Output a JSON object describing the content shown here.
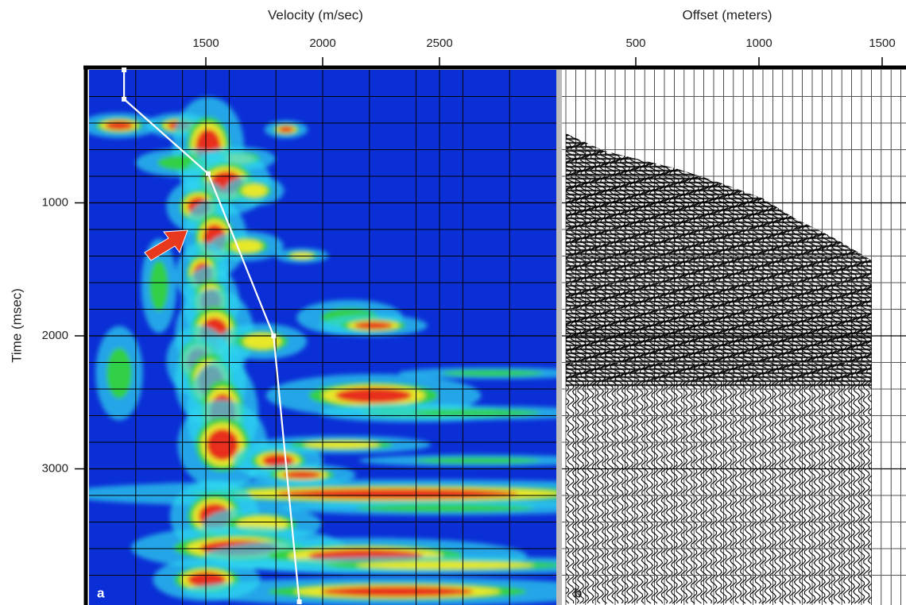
{
  "chart_data": [
    {
      "type": "semblance",
      "xlabel": "Velocity (m/sec)",
      "ylabel": "Time (msec)",
      "xlim": [
        1000,
        3000
      ],
      "ylim": [
        0,
        4000
      ],
      "xticks": [
        1500,
        2000,
        2500
      ],
      "yticks": [
        1000,
        2000,
        3000
      ],
      "xgrid": [
        1200,
        1400,
        1600,
        1800,
        2000,
        2200,
        2400,
        2600,
        2800
      ],
      "ygrid": [
        200,
        400,
        600,
        800,
        1000,
        1200,
        1400,
        1600,
        1800,
        2000,
        2200,
        2400,
        2600,
        2800,
        3000,
        3200,
        3400,
        3600,
        3800
      ],
      "annotation": "a",
      "series": [
        {
          "color": "#ffffff",
          "x": [
            1150,
            1150,
            1510,
            1790,
            1900
          ],
          "y": [
            0,
            220,
            780,
            2000,
            4000
          ]
        }
      ]
    },
    {
      "type": "gather",
      "xlabel": "Offset (meters)",
      "xlim": [
        200,
        1600
      ],
      "ylim": [
        0,
        4000
      ],
      "xticks": [
        500,
        1000,
        1500
      ],
      "ygrid": [
        200,
        400,
        600,
        800,
        1000,
        1200,
        1400,
        1600,
        1800,
        2000,
        2200,
        2400,
        2600,
        2800,
        3000,
        3200,
        3400,
        3600,
        3800
      ],
      "annotation": "b"
    }
  ]
}
